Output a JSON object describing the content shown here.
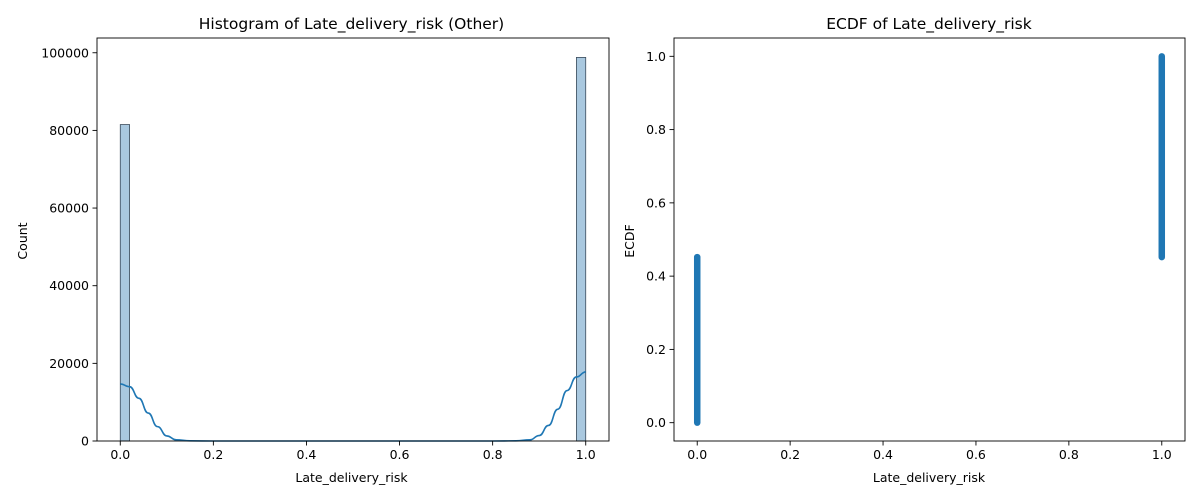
{
  "chart_data": [
    {
      "type": "bar",
      "subtype": "histogram",
      "title": "Histogram of Late_delivery_risk (Other)",
      "xlabel": "Late_delivery_risk",
      "ylabel": "Count",
      "xlim": [
        -0.05,
        1.05
      ],
      "ylim": [
        0,
        103800
      ],
      "xticks": [
        0.0,
        0.2,
        0.4,
        0.6,
        0.8,
        1.0
      ],
      "xtick_labels": [
        "0.0",
        "0.2",
        "0.4",
        "0.6",
        "0.8",
        "1.0"
      ],
      "yticks": [
        0,
        20000,
        40000,
        60000,
        80000,
        100000
      ],
      "ytick_labels": [
        "0",
        "20000",
        "40000",
        "60000",
        "80000",
        "100000"
      ],
      "bars": [
        {
          "x0": 0.0,
          "x1": 0.02,
          "value": 81500
        },
        {
          "x0": 0.98,
          "x1": 1.0,
          "value": 98800
        }
      ],
      "kde": {
        "x": [
          0.0,
          0.02,
          0.04,
          0.06,
          0.08,
          0.1,
          0.12,
          0.15,
          0.2,
          0.3,
          0.5,
          0.7,
          0.8,
          0.85,
          0.88,
          0.9,
          0.92,
          0.94,
          0.96,
          0.98,
          1.0
        ],
        "y": [
          14700,
          14000,
          11000,
          7200,
          3700,
          1300,
          300,
          40,
          0,
          0,
          0,
          0,
          0,
          40,
          300,
          1400,
          4000,
          8200,
          13000,
          16500,
          17800
        ]
      },
      "colors": {
        "bar_fill": "#a9c8df",
        "bar_edge": "#3a4a5a",
        "kde": "#1f77b4"
      },
      "grid": false
    },
    {
      "type": "scatter",
      "subtype": "ecdf",
      "title": "ECDF of Late_delivery_risk",
      "xlabel": "Late_delivery_risk",
      "ylabel": "ECDF",
      "xlim": [
        -0.05,
        1.05
      ],
      "ylim": [
        -0.05,
        1.05
      ],
      "xticks": [
        0.0,
        0.2,
        0.4,
        0.6,
        0.8,
        1.0
      ],
      "xtick_labels": [
        "0.0",
        "0.2",
        "0.4",
        "0.6",
        "0.8",
        "1.0"
      ],
      "yticks": [
        0.0,
        0.2,
        0.4,
        0.6,
        0.8,
        1.0
      ],
      "ytick_labels": [
        "0.0",
        "0.2",
        "0.4",
        "0.6",
        "0.8",
        "1.0"
      ],
      "series": [
        {
          "x": 0.0,
          "y_range": [
            0.0,
            0.452
          ]
        },
        {
          "x": 1.0,
          "y_range": [
            0.452,
            1.0
          ]
        }
      ],
      "colors": {
        "points": "#1f77b4"
      },
      "grid": false
    }
  ]
}
